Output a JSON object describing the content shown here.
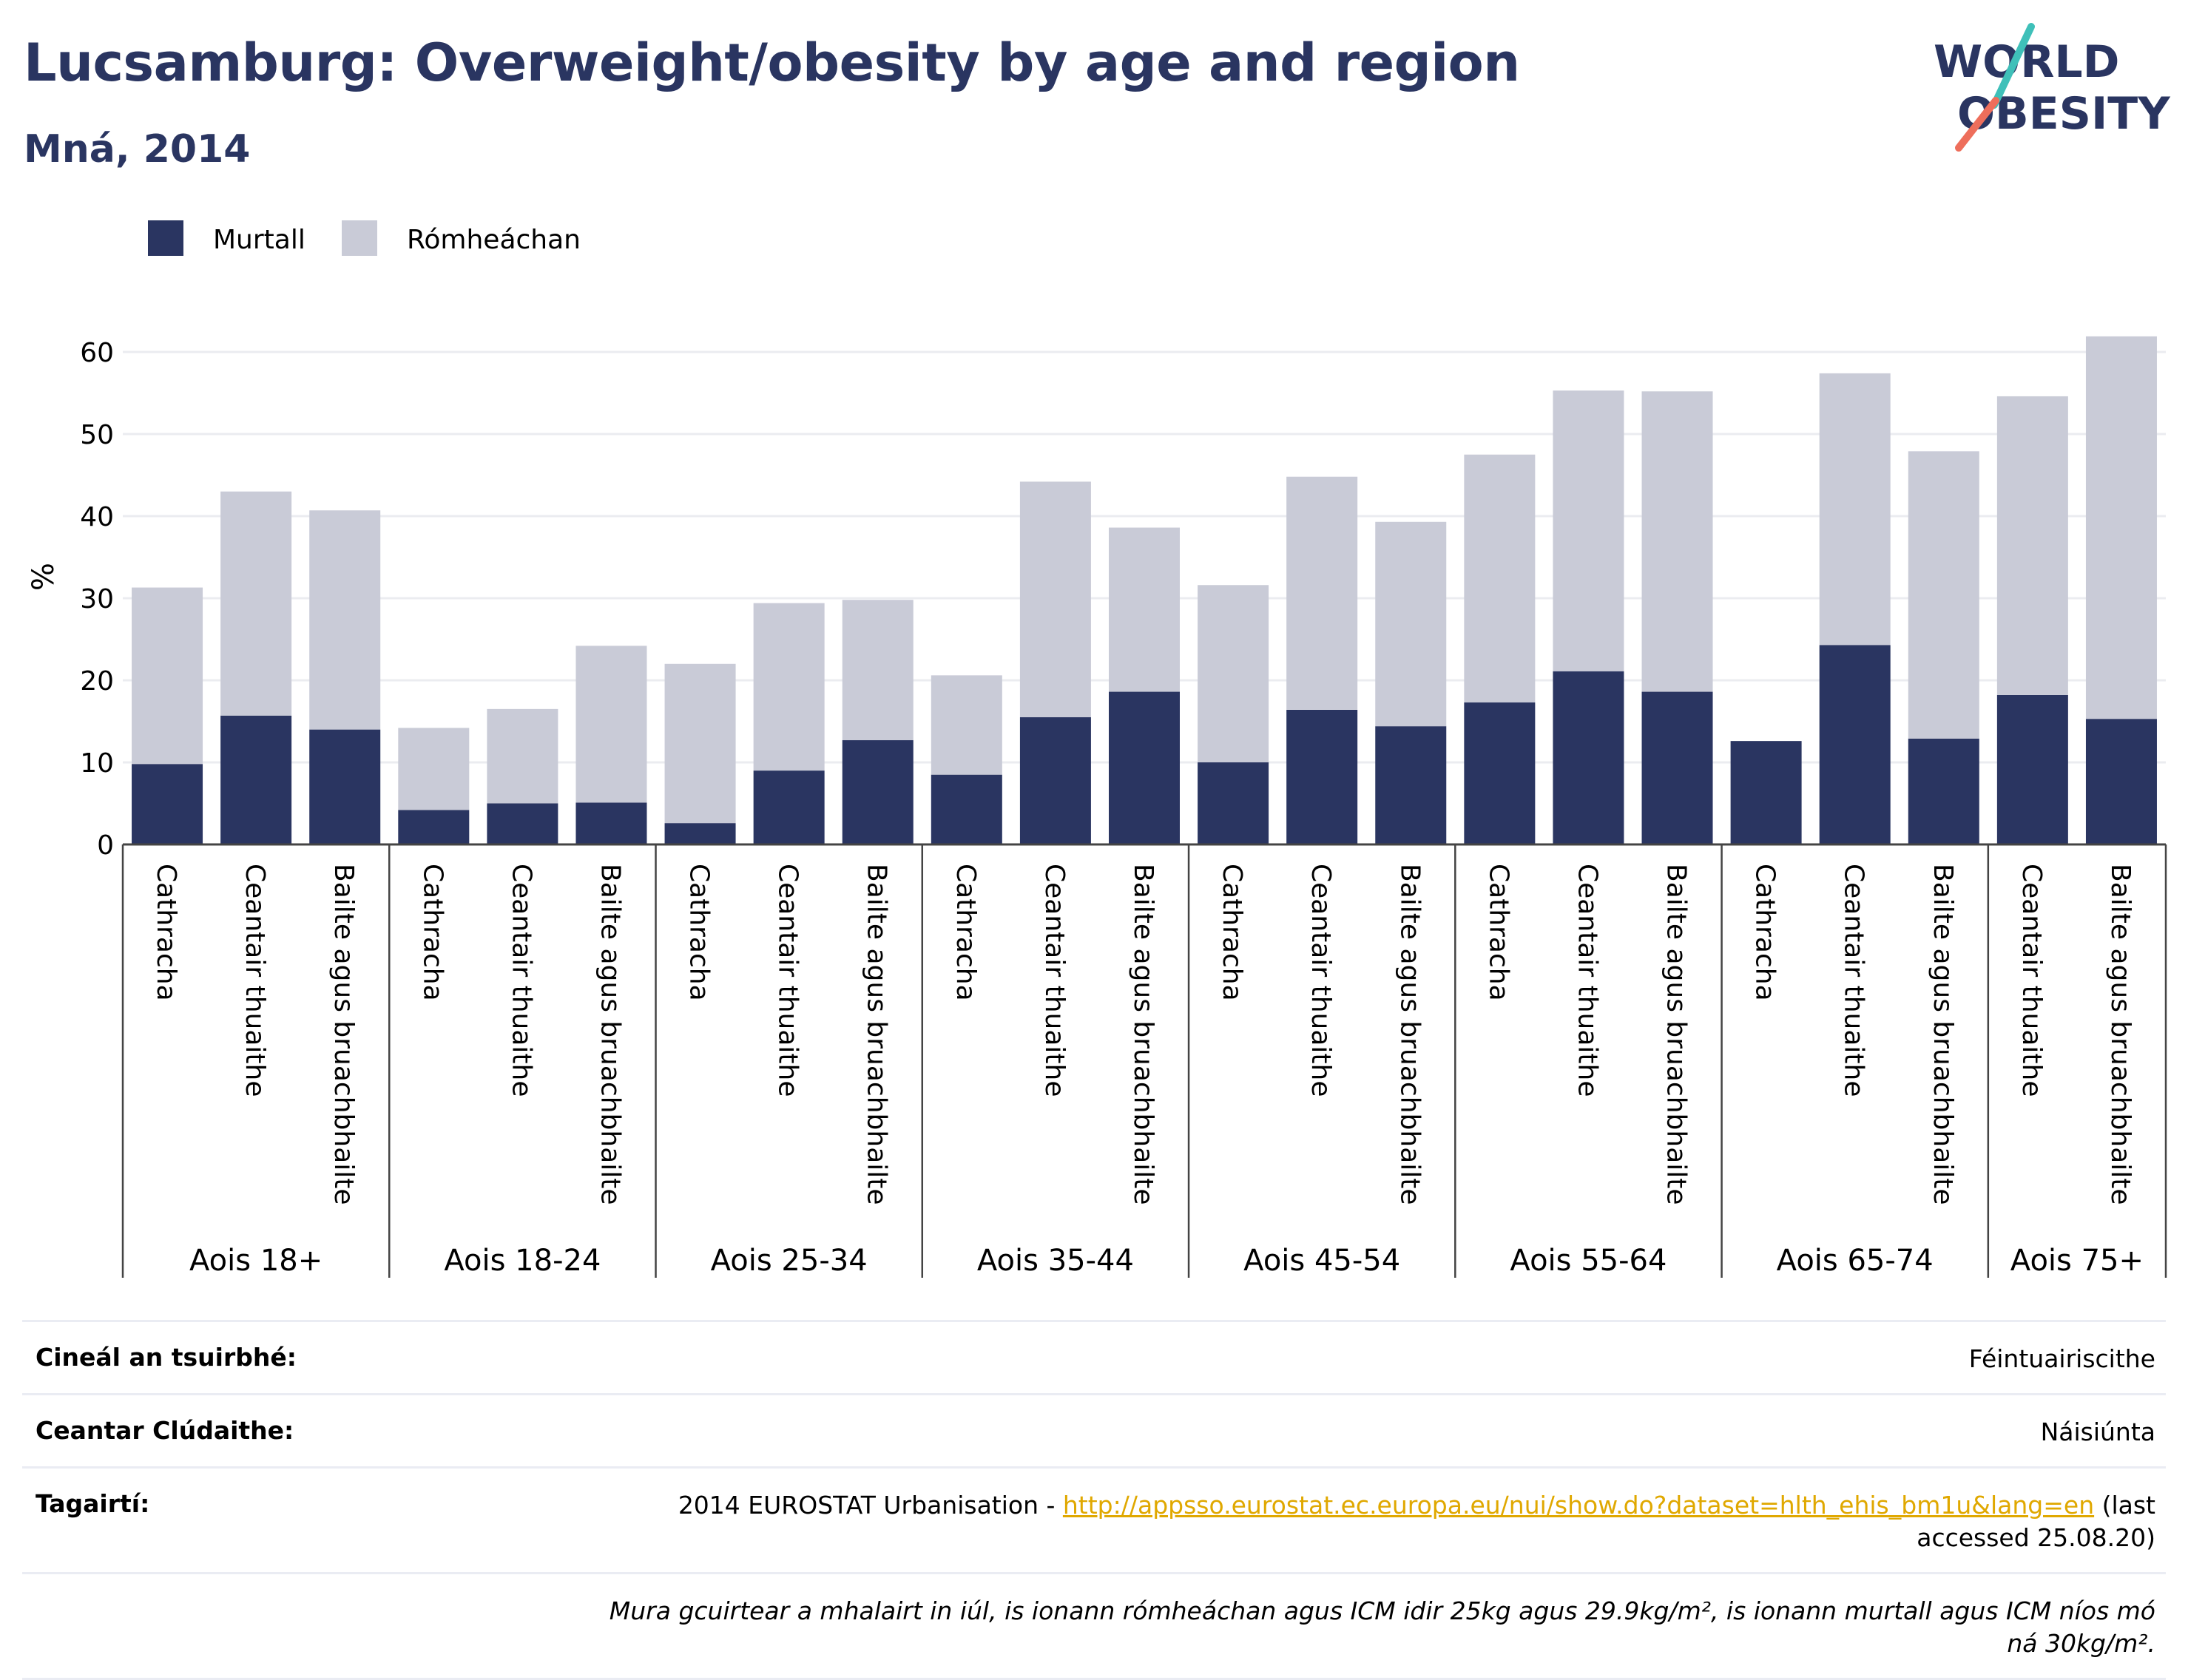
{
  "header": {
    "title": "Lucsamburg: Overweight/obesity by age and region",
    "subtitle": "Mná, 2014"
  },
  "logo": {
    "line1": "WORLD",
    "line2": "OBESITY"
  },
  "colors": {
    "obese": "#2a3561",
    "overweight": "#c9cbd7",
    "title": "#2a3561",
    "logo_slash_top": "#3fc0b9",
    "logo_slash_bottom": "#ee6e5b",
    "link": "#e0a800"
  },
  "chart_data": {
    "type": "bar",
    "stacked": true,
    "ylabel": "%",
    "ylim": [
      0,
      62
    ],
    "yticks": [
      0,
      10,
      20,
      30,
      40,
      50,
      60
    ],
    "grid": true,
    "legend_position": "top-left",
    "groups": [
      {
        "label": "Aois 18+",
        "categories": [
          "Cathracha",
          "Ceantair thuaithe",
          "Bailte agus bruachbhailte"
        ]
      },
      {
        "label": "Aois 18-24",
        "categories": [
          "Cathracha",
          "Ceantair thuaithe",
          "Bailte agus bruachbhailte"
        ]
      },
      {
        "label": "Aois 25-34",
        "categories": [
          "Cathracha",
          "Ceantair thuaithe",
          "Bailte agus bruachbhailte"
        ]
      },
      {
        "label": "Aois 35-44",
        "categories": [
          "Cathracha",
          "Ceantair thuaithe",
          "Bailte agus bruachbhailte"
        ]
      },
      {
        "label": "Aois 45-54",
        "categories": [
          "Cathracha",
          "Ceantair thuaithe",
          "Bailte agus bruachbhailte"
        ]
      },
      {
        "label": "Aois 55-64",
        "categories": [
          "Cathracha",
          "Ceantair thuaithe",
          "Bailte agus bruachbhailte"
        ]
      },
      {
        "label": "Aois 65-74",
        "categories": [
          "Cathracha",
          "Ceantair thuaithe",
          "Bailte agus bruachbhailte"
        ]
      },
      {
        "label": "Aois 75+",
        "categories": [
          "Ceantair thuaithe",
          "Bailte agus bruachbhailte"
        ]
      }
    ],
    "series": [
      {
        "name": "Murtall",
        "values": [
          9.8,
          15.7,
          14.0,
          4.2,
          5.0,
          5.1,
          2.6,
          9.0,
          12.7,
          8.5,
          15.5,
          18.6,
          10.0,
          16.4,
          14.4,
          17.3,
          21.1,
          18.6,
          12.6,
          24.3,
          12.9,
          18.2,
          15.3
        ]
      },
      {
        "name": "Rómheáchan",
        "values": [
          21.5,
          27.3,
          26.7,
          10.0,
          11.5,
          19.1,
          19.4,
          20.4,
          17.1,
          12.1,
          28.7,
          20.0,
          21.6,
          28.4,
          24.9,
          30.2,
          34.2,
          36.6,
          0,
          33.1,
          35.0,
          36.4,
          46.6
        ]
      }
    ]
  },
  "info": {
    "survey_type_label": "Cineál an tsuirbhé:",
    "survey_type_value": "Féintuairiscithe",
    "coverage_label": "Ceantar Clúdaithe:",
    "coverage_value": "Náisiúnta",
    "references_label": "Tagairtí:",
    "reference_prefix": "2014 EUROSTAT Urbanisation - ",
    "reference_link": "http://appsso.eurostat.ec.europa.eu/nui/show.do?dataset=hlth_ehis_bm1u&lang=en",
    "reference_suffix": " (last accessed 25.08.20)",
    "note": "Mura gcuirtear a mhalairt in iúl, is ionann rómheáchan agus ICM idir 25kg agus 29.9kg/m², is ionann murtall agus ICM níos mó ná 30kg/m²."
  }
}
